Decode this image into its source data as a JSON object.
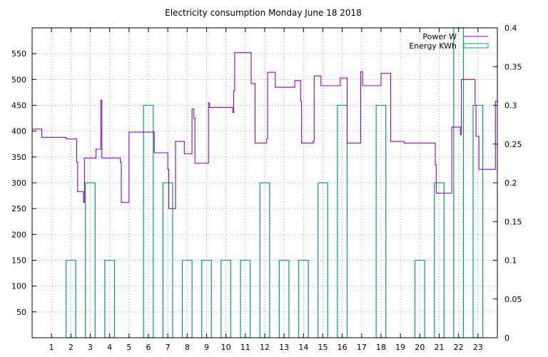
{
  "chart_data": {
    "type": "line",
    "title": "Electricity consumption Monday June 18 2018",
    "x_ticks": [
      "1",
      "2",
      "3",
      "4",
      "5",
      "6",
      "7",
      "8",
      "9",
      "10",
      "11",
      "12",
      "13",
      "14",
      "15",
      "16",
      "17",
      "18",
      "19",
      "20",
      "21",
      "22",
      "23"
    ],
    "xlim": [
      0,
      24
    ],
    "y1_ticks": [
      "50",
      "100",
      "150",
      "200",
      "250",
      "300",
      "350",
      "400",
      "450",
      "500",
      "550"
    ],
    "ylim": [
      0,
      600
    ],
    "y2_ticks": [
      "0",
      "0.05",
      "0.1",
      "0.15",
      "0.2",
      "0.25",
      "0.3",
      "0.35",
      "0.4"
    ],
    "y2lim": [
      0,
      0.4
    ],
    "legend_position": "top-right",
    "grid": true,
    "series": [
      {
        "name": "Power W",
        "type": "step-line",
        "axis": "y1",
        "color": "#9400d3",
        "points": [
          [
            0,
            404
          ],
          [
            0.5,
            388
          ],
          [
            1.75,
            385
          ],
          [
            2.3,
            340
          ],
          [
            2.35,
            283
          ],
          [
            2.65,
            262
          ],
          [
            2.7,
            348
          ],
          [
            3.3,
            365
          ],
          [
            3.55,
            460
          ],
          [
            3.6,
            348
          ],
          [
            3.85,
            348
          ],
          [
            4.55,
            340
          ],
          [
            4.6,
            262
          ],
          [
            4.95,
            262
          ],
          [
            5.0,
            398
          ],
          [
            5.3,
            398
          ],
          [
            6.2,
            398
          ],
          [
            6.3,
            358
          ],
          [
            6.95,
            358
          ],
          [
            7.0,
            326
          ],
          [
            7.05,
            250
          ],
          [
            7.35,
            250
          ],
          [
            7.4,
            380
          ],
          [
            7.8,
            380
          ],
          [
            7.85,
            356
          ],
          [
            8.2,
            356
          ],
          [
            8.25,
            443
          ],
          [
            8.35,
            425
          ],
          [
            8.4,
            338
          ],
          [
            9.05,
            338
          ],
          [
            9.1,
            455
          ],
          [
            9.15,
            446
          ],
          [
            10.3,
            446
          ],
          [
            10.35,
            436
          ],
          [
            10.4,
            478
          ],
          [
            10.45,
            552
          ],
          [
            11.2,
            552
          ],
          [
            11.3,
            492
          ],
          [
            11.45,
            492
          ],
          [
            11.5,
            377
          ],
          [
            12.05,
            377
          ],
          [
            12.1,
            385
          ],
          [
            12.15,
            514
          ],
          [
            12.5,
            514
          ],
          [
            12.55,
            485
          ],
          [
            13.5,
            485
          ],
          [
            13.55,
            498
          ],
          [
            13.8,
            498
          ],
          [
            13.85,
            458
          ],
          [
            13.9,
            377
          ],
          [
            14.45,
            377
          ],
          [
            14.5,
            380
          ],
          [
            14.55,
            507
          ],
          [
            14.85,
            507
          ],
          [
            14.9,
            488
          ],
          [
            15.85,
            488
          ],
          [
            15.9,
            503
          ],
          [
            16.2,
            503
          ],
          [
            16.25,
            377
          ],
          [
            16.9,
            377
          ],
          [
            16.95,
            515
          ],
          [
            17.05,
            488
          ],
          [
            17.95,
            488
          ],
          [
            18.0,
            512
          ],
          [
            18.45,
            512
          ],
          [
            18.5,
            380
          ],
          [
            19.15,
            380
          ],
          [
            19.2,
            377
          ],
          [
            20.75,
            377
          ],
          [
            20.8,
            335
          ],
          [
            20.85,
            280
          ],
          [
            21.6,
            280
          ],
          [
            21.65,
            408
          ],
          [
            22.05,
            408
          ],
          [
            22.1,
            393
          ],
          [
            22.15,
            500
          ],
          [
            22.8,
            500
          ],
          [
            22.85,
            450
          ],
          [
            22.9,
            390
          ],
          [
            23.0,
            390
          ],
          [
            23.05,
            326
          ],
          [
            23.85,
            326
          ],
          [
            23.9,
            458
          ],
          [
            24,
            458
          ]
        ]
      },
      {
        "name": "Energy KWh",
        "type": "bar",
        "axis": "y2",
        "color": "#009e73",
        "bars": [
          [
            1.75,
            2.25,
            0.1
          ],
          [
            2.75,
            3.25,
            0.2
          ],
          [
            3.75,
            4.25,
            0.1
          ],
          [
            5.75,
            6.25,
            0.3
          ],
          [
            6.75,
            7.25,
            0.2
          ],
          [
            7.75,
            8.25,
            0.1
          ],
          [
            8.75,
            9.25,
            0.1
          ],
          [
            9.75,
            10.25,
            0.1
          ],
          [
            10.75,
            11.25,
            0.1
          ],
          [
            11.75,
            12.25,
            0.2
          ],
          [
            12.75,
            13.25,
            0.1
          ],
          [
            13.75,
            14.25,
            0.1
          ],
          [
            14.75,
            15.25,
            0.2
          ],
          [
            15.75,
            16.25,
            0.3
          ],
          [
            17.75,
            18.25,
            0.3
          ],
          [
            19.75,
            20.25,
            0.1
          ],
          [
            20.75,
            21.25,
            0.2
          ],
          [
            21.75,
            22.25,
            0.4
          ],
          [
            22.75,
            23.25,
            0.3
          ]
        ]
      }
    ]
  }
}
